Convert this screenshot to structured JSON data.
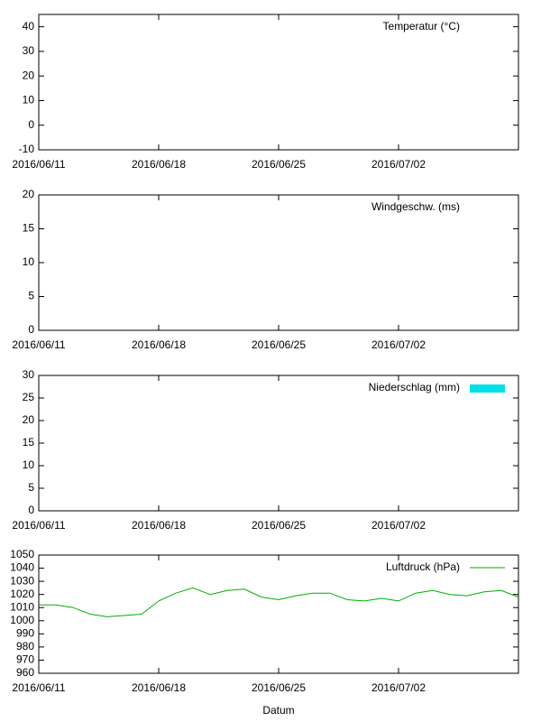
{
  "chart_data": [
    {
      "type": "line",
      "series": [
        {
          "name": "Temperatur (°C)",
          "values": []
        }
      ],
      "xlim": [
        "2016/06/11",
        "2016/07/09"
      ],
      "xticks": [
        "2016/06/11",
        "2016/06/18",
        "2016/06/25",
        "2016/07/02"
      ],
      "ylim": [
        -10,
        45
      ],
      "yticks": [
        -10,
        0,
        10,
        20,
        30,
        40
      ]
    },
    {
      "type": "line",
      "series": [
        {
          "name": "Windgeschw. (ms)",
          "values": []
        }
      ],
      "xlim": [
        "2016/06/11",
        "2016/07/09"
      ],
      "xticks": [
        "2016/06/11",
        "2016/06/18",
        "2016/06/25",
        "2016/07/02"
      ],
      "ylim": [
        0,
        20
      ],
      "yticks": [
        0,
        5,
        10,
        15,
        20
      ]
    },
    {
      "type": "bar",
      "series": [
        {
          "name": "Niederschlag (mm)",
          "color": "#00e0e8",
          "values": []
        }
      ],
      "xlim": [
        "2016/06/11",
        "2016/07/09"
      ],
      "xticks": [
        "2016/06/11",
        "2016/06/18",
        "2016/06/25",
        "2016/07/02"
      ],
      "ylim": [
        0,
        30
      ],
      "yticks": [
        0,
        5,
        10,
        15,
        20,
        25,
        30
      ]
    },
    {
      "type": "line",
      "x_label": "Datum",
      "x": [
        "2016/06/11",
        "2016/06/12",
        "2016/06/13",
        "2016/06/14",
        "2016/06/15",
        "2016/06/16",
        "2016/06/17",
        "2016/06/18",
        "2016/06/19",
        "2016/06/20",
        "2016/06/21",
        "2016/06/22",
        "2016/06/23",
        "2016/06/24",
        "2016/06/25",
        "2016/06/26",
        "2016/06/27",
        "2016/06/28",
        "2016/06/29",
        "2016/06/30",
        "2016/07/01",
        "2016/07/02",
        "2016/07/03",
        "2016/07/04",
        "2016/07/05",
        "2016/07/06",
        "2016/07/07",
        "2016/07/08",
        "2016/07/09"
      ],
      "series": [
        {
          "name": "Luftdruck (hPa)",
          "color": "#00b000",
          "values": [
            1012,
            1012,
            1010,
            1005,
            1003,
            1004,
            1005,
            1015,
            1021,
            1025,
            1020,
            1023,
            1024,
            1018,
            1016,
            1019,
            1021,
            1021,
            1016,
            1015,
            1017,
            1015,
            1021,
            1023,
            1020,
            1019,
            1022,
            1023,
            1018
          ]
        }
      ],
      "xlim": [
        "2016/06/11",
        "2016/07/09"
      ],
      "xticks": [
        "2016/06/11",
        "2016/06/18",
        "2016/06/25",
        "2016/07/02"
      ],
      "ylim": [
        960,
        1050
      ],
      "yticks": [
        960,
        970,
        980,
        990,
        1000,
        1010,
        1020,
        1030,
        1040,
        1050
      ]
    }
  ]
}
